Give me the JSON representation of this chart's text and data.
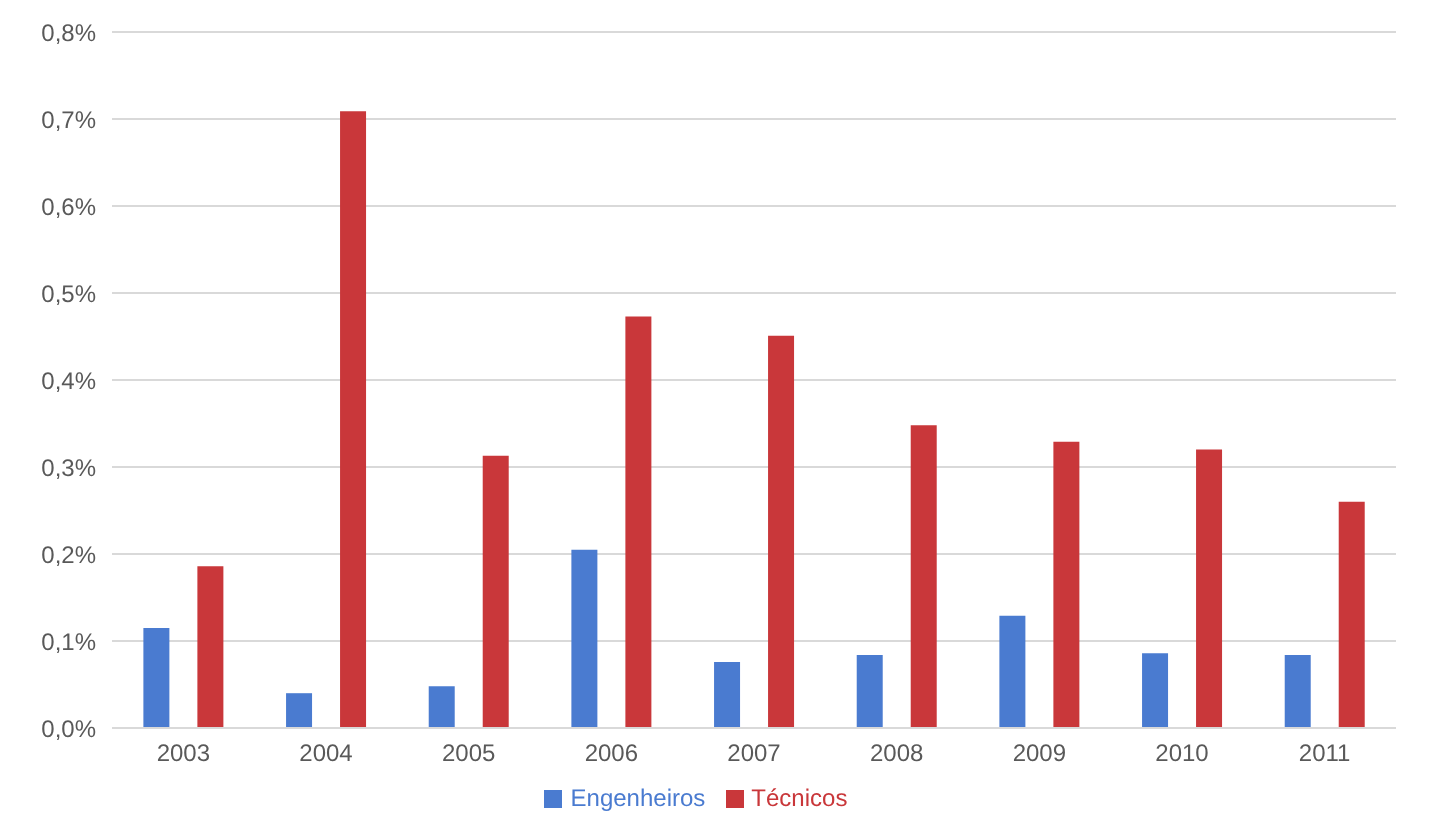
{
  "chart_data": {
    "type": "bar",
    "categories": [
      "2003",
      "2004",
      "2005",
      "2006",
      "2007",
      "2008",
      "2009",
      "2010",
      "2011"
    ],
    "series": [
      {
        "name": "Engenheiros",
        "color": "#4a7bd0",
        "values": [
          0.115,
          0.04,
          0.048,
          0.205,
          0.076,
          0.084,
          0.129,
          0.086,
          0.084
        ]
      },
      {
        "name": "Técnicos",
        "color": "#c9373a",
        "values": [
          0.186,
          0.709,
          0.313,
          0.473,
          0.451,
          0.348,
          0.329,
          0.32,
          0.26
        ]
      }
    ],
    "ylim": [
      0,
      0.8
    ],
    "yticks": [
      {
        "value": 0,
        "label": "0,0%"
      },
      {
        "value": 0.1,
        "label": "0,1%"
      },
      {
        "value": 0.2,
        "label": "0,2%"
      },
      {
        "value": 0.3,
        "label": "0,3%"
      },
      {
        "value": 0.4,
        "label": "0,4%"
      },
      {
        "value": 0.5,
        "label": "0,5%"
      },
      {
        "value": 0.6,
        "label": "0,6%"
      },
      {
        "value": 0.7,
        "label": "0,7%"
      },
      {
        "value": 0.8,
        "label": "0,8%"
      }
    ],
    "grid": "y",
    "legend": "bottom"
  }
}
